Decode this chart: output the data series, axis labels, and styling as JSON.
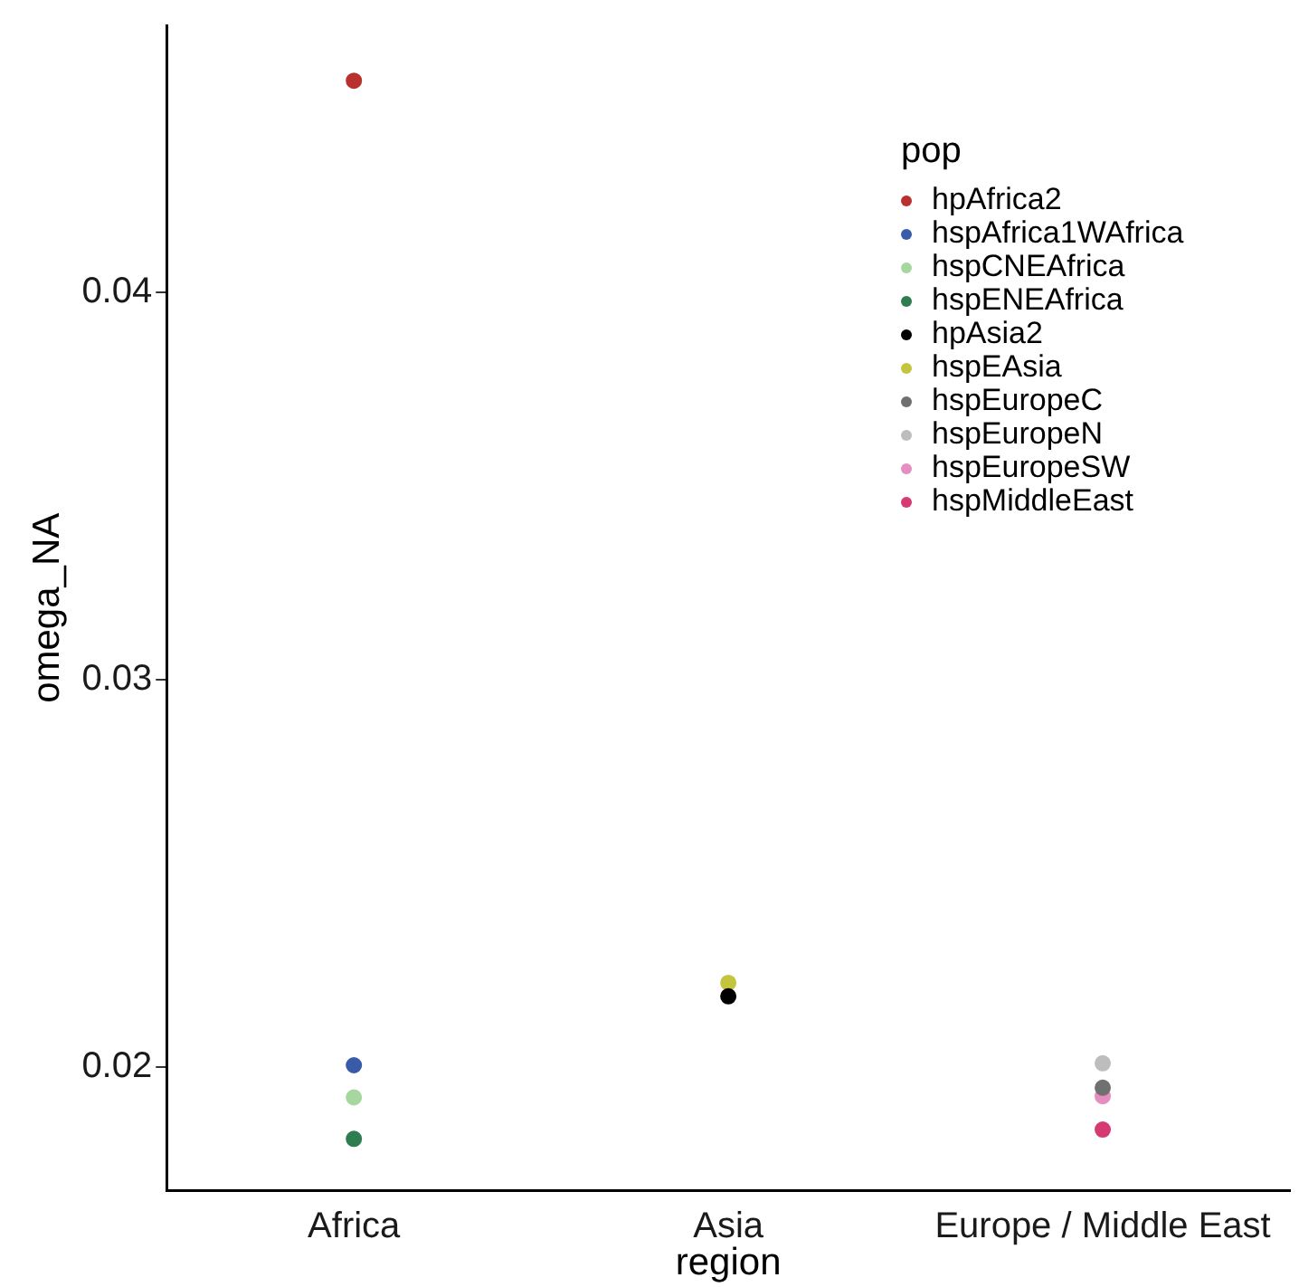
{
  "chart_data": {
    "type": "scatter",
    "xlabel": "region",
    "ylabel": "omega_NA",
    "legend_title": "pop",
    "legend": "top right",
    "grid": false,
    "marker": "circle",
    "categories": [
      "Africa",
      "Asia",
      "Europe / Middle East"
    ],
    "ylim": [
      0.0168,
      0.0469
    ],
    "yticks": [
      {
        "value": 0.02,
        "label": "0.02"
      },
      {
        "value": 0.03,
        "label": "0.03"
      },
      {
        "value": 0.04,
        "label": "0.04"
      }
    ],
    "series": [
      {
        "name": "hpAfrica2",
        "color": "#b8312f",
        "x": [
          "Africa"
        ],
        "values": [
          0.04547
        ]
      },
      {
        "name": "hspAfrica1WAfrica",
        "color": "#3a5ba9",
        "x": [
          "Africa"
        ],
        "values": [
          0.02004
        ]
      },
      {
        "name": "hspCNEAfrica",
        "color": "#a6d79e",
        "x": [
          "Africa"
        ],
        "values": [
          0.01921
        ]
      },
      {
        "name": "hspENEAfrica",
        "color": "#2e7d4f",
        "x": [
          "Africa"
        ],
        "values": [
          0.01814
        ]
      },
      {
        "name": "hpAsia2",
        "color": "#000000",
        "x": [
          "Asia"
        ],
        "values": [
          0.02182
        ]
      },
      {
        "name": "hspEAsia",
        "color": "#c3c53f",
        "x": [
          "Asia"
        ],
        "values": [
          0.02217
        ]
      },
      {
        "name": "hspEuropeC",
        "color": "#707070",
        "x": [
          "Europe / Middle East"
        ],
        "values": [
          0.01946
        ]
      },
      {
        "name": "hspEuropeN",
        "color": "#bdbdbd",
        "x": [
          "Europe / Middle East"
        ],
        "values": [
          0.02009
        ]
      },
      {
        "name": "hspEuropeSW",
        "color": "#e48fbf",
        "x": [
          "Europe / Middle East"
        ],
        "values": [
          0.01924
        ]
      },
      {
        "name": "hspMiddleEast",
        "color": "#d63a72",
        "x": [
          "Europe / Middle East"
        ],
        "values": [
          0.01838
        ]
      }
    ]
  }
}
